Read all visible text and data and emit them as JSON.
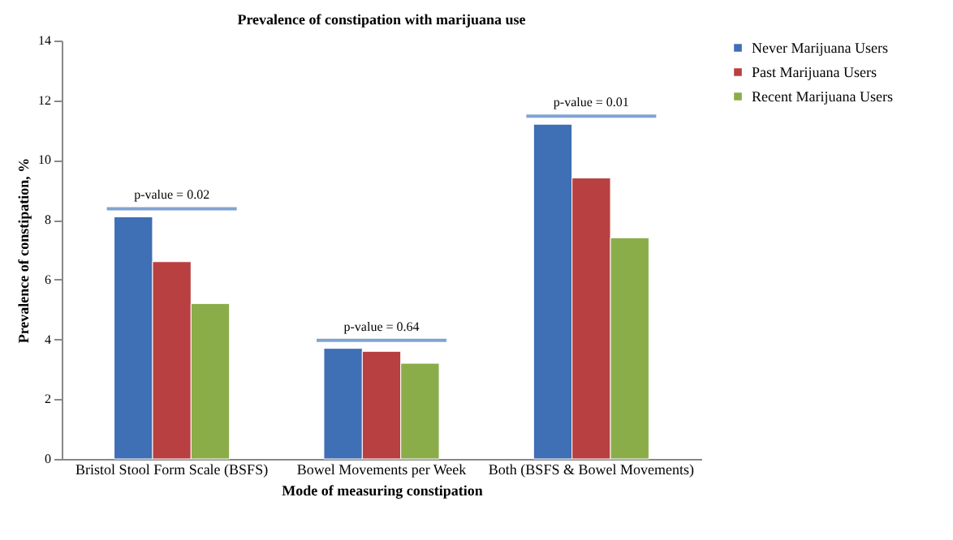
{
  "chart_data": {
    "type": "bar",
    "title": "Prevalence of constipation with marijuana use",
    "xlabel": "Mode of measuring constipation",
    "ylabel": "Prevalence of constipation, %",
    "categories": [
      "Bristol Stool Form Scale (BSFS)",
      "Bowel Movements per Week",
      "Both (BSFS & Bowel Movements)"
    ],
    "series": [
      {
        "name": "Never  Marijuana Users",
        "color": "#3f6fb4",
        "values": [
          8.1,
          3.7,
          11.2
        ]
      },
      {
        "name": "Past  Marijuana Users",
        "color": "#b94040",
        "values": [
          6.6,
          3.6,
          9.4
        ]
      },
      {
        "name": "Recent Marijuana Users",
        "color": "#8aad4a",
        "values": [
          5.2,
          3.2,
          7.4
        ]
      }
    ],
    "ylim": [
      0,
      14
    ],
    "yticks": [
      0,
      2,
      4,
      6,
      8,
      10,
      12,
      14
    ],
    "grid": false,
    "legend": "right",
    "annotations": [
      "p-value = 0.02",
      "p-value = 0.64",
      "p-value = 0.01"
    ]
  }
}
